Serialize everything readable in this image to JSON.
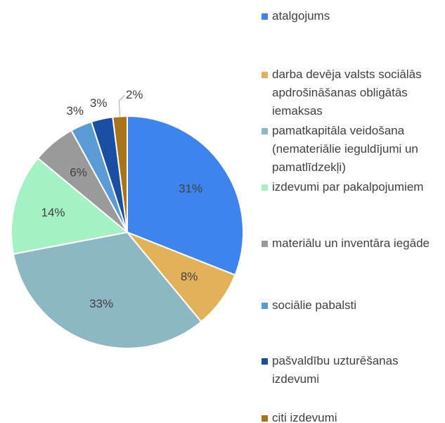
{
  "chart_data": {
    "type": "pie",
    "categories": [
      "atalgojums",
      "darba devēja valsts sociālās apdrošināšanas obligātās iemaksas",
      "pamatkapitāla veidošana (nemateriālie ieguldījumi un pamatlīdzekļi)",
      "izdevumi par pakalpojumiem",
      "materiālu un inventāra iegāde",
      "sociālie pabalsti",
      "pašvaldību uzturēšanas izdevumi",
      "citi izdevumi"
    ],
    "values": [
      31,
      8,
      33,
      14,
      6,
      3,
      3,
      2
    ],
    "value_labels": [
      "31%",
      "8%",
      "33%",
      "14%",
      "6%",
      "3%",
      "3%",
      "2%"
    ],
    "colors": [
      "#3f83ec",
      "#e2b25b",
      "#8db7c3",
      "#a4f1c3",
      "#9a9a9a",
      "#5b9bd5",
      "#1a4ea3",
      "#a7741c"
    ],
    "legend": "right"
  }
}
